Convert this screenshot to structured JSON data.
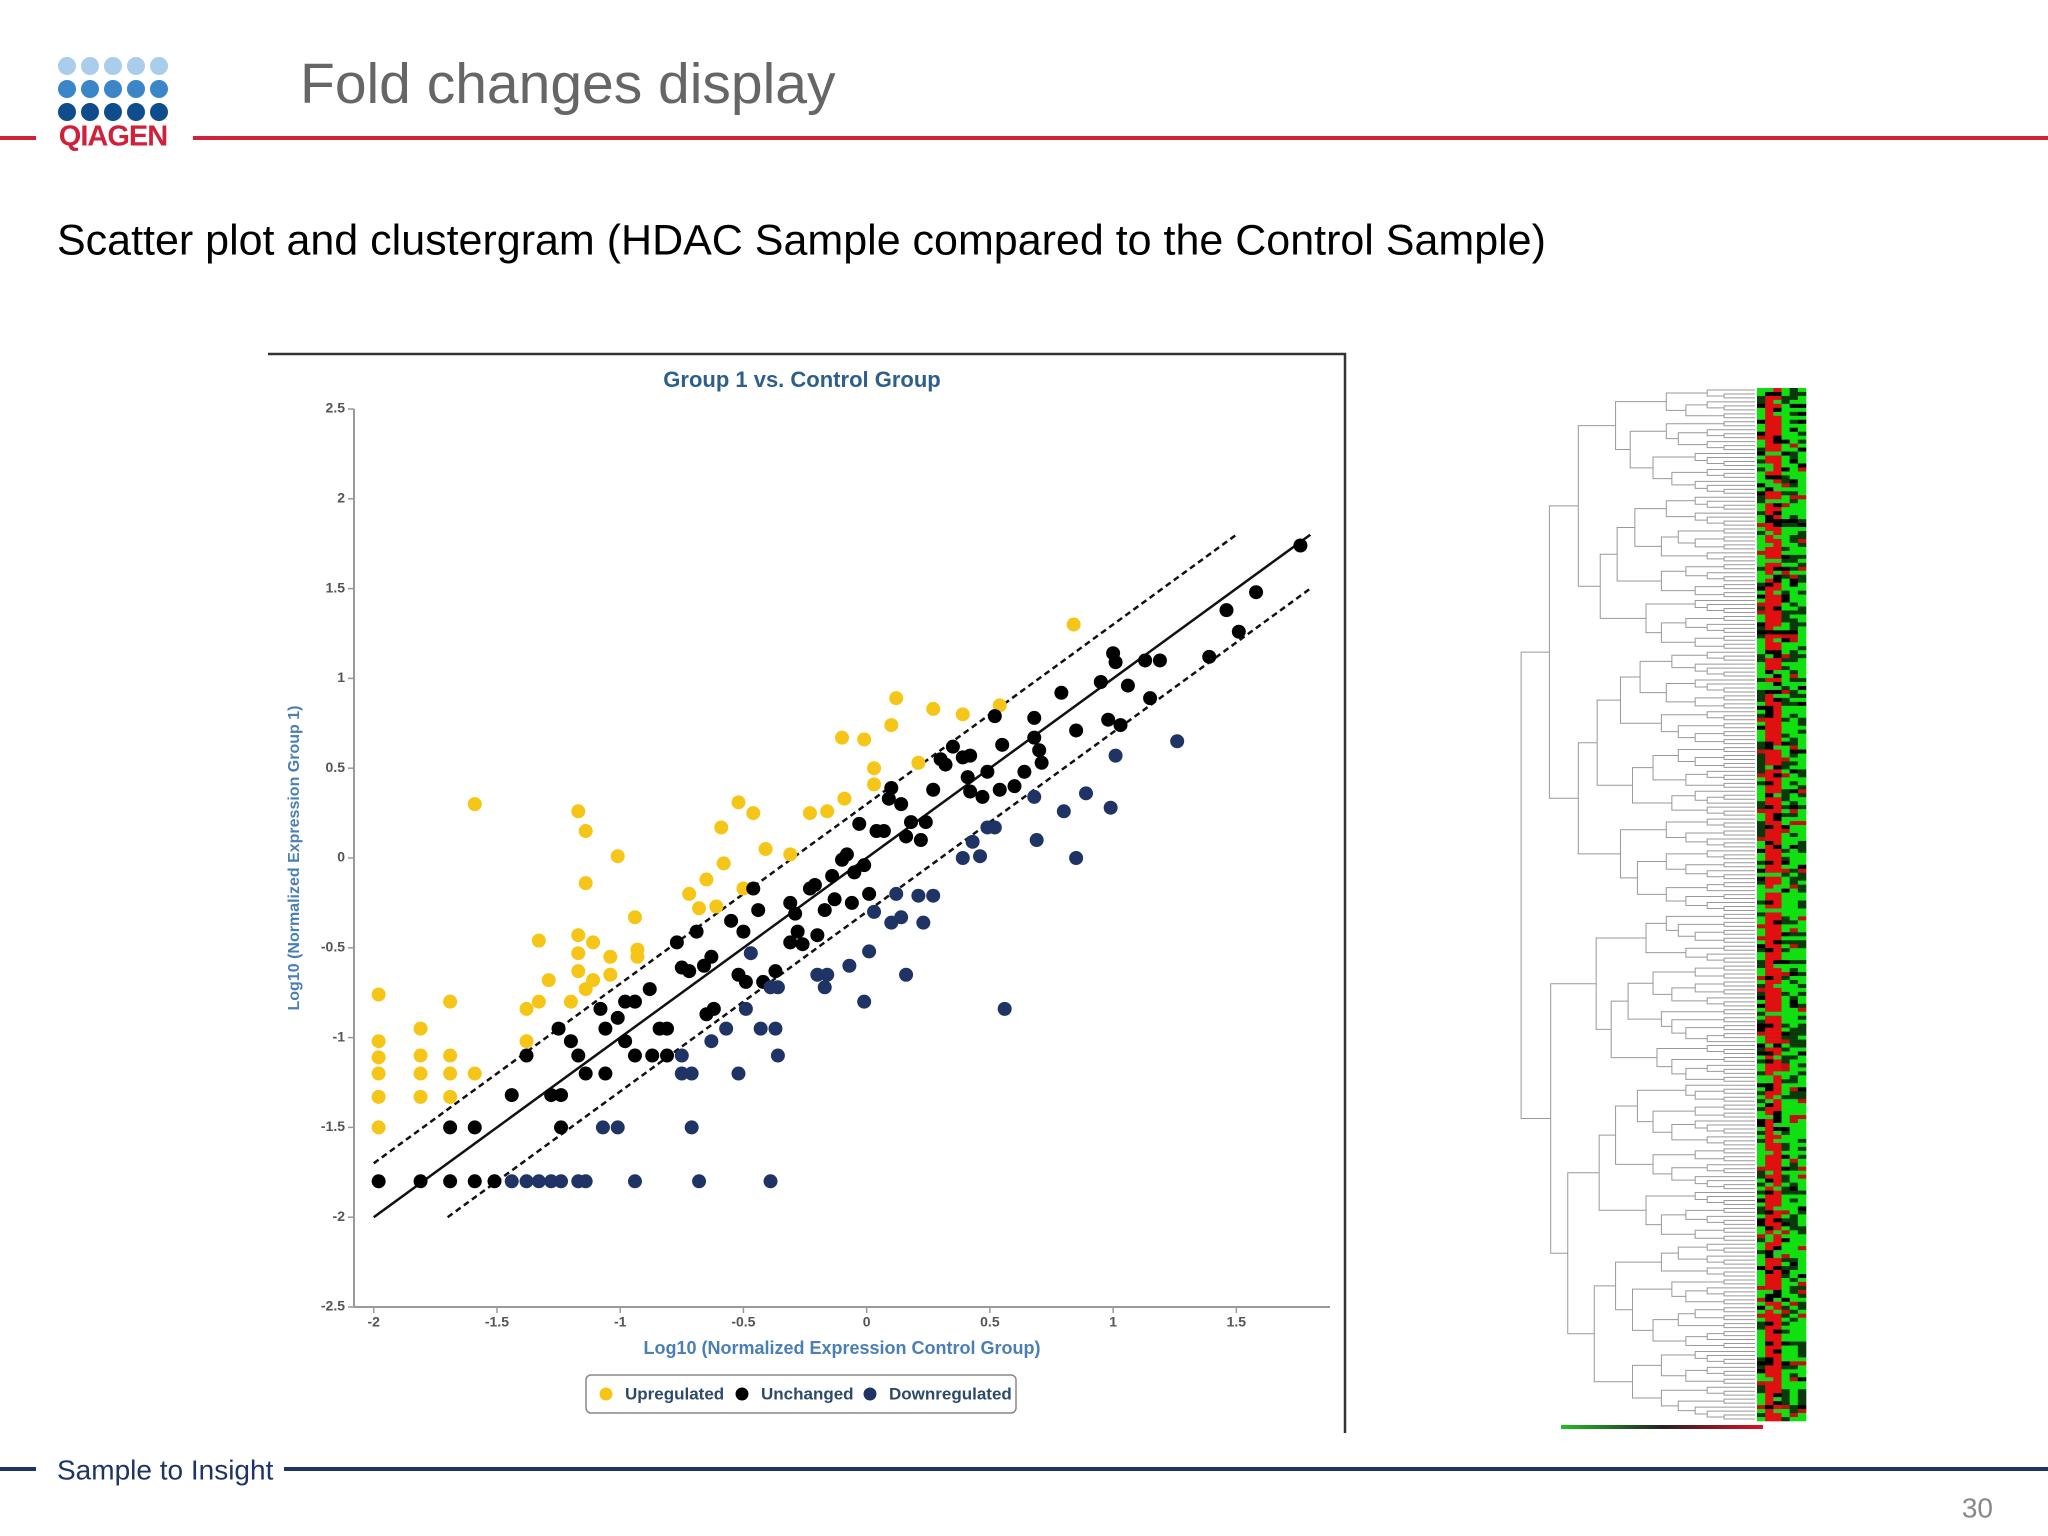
{
  "header": {
    "logo": "QIAGEN",
    "title": "Fold changes display"
  },
  "subtitle": "Scatter plot and clustergram (HDAC Sample compared to the Control Sample)",
  "footer": {
    "tagline": "Sample to Insight",
    "page": "30"
  },
  "chart_data": {
    "type": "scatter",
    "title": "Group 1 vs. Control Group",
    "x_label": "Log10 (Normalized Expression Control Group)",
    "y_label": "Log10 (Normalized Expression Group 1)",
    "xlim": [
      -2.08,
      1.88
    ],
    "ylim": [
      -2.5,
      2.5
    ],
    "xticks": [
      -2,
      -1.5,
      -1,
      -0.5,
      0,
      0.5,
      1,
      1.5
    ],
    "yticks": [
      2.5,
      2,
      1.5,
      1,
      0.5,
      0,
      -0.5,
      -1,
      -1.5,
      -2,
      -2.5
    ],
    "legend": "bottom",
    "lines": [
      {
        "style": "solid",
        "x": [
          -2,
          1.8
        ],
        "y": [
          -2,
          1.8
        ]
      },
      {
        "style": "dashed",
        "x": [
          -2,
          1.5
        ],
        "y": [
          -1.7,
          1.8
        ]
      },
      {
        "style": "dashed",
        "x": [
          -1.7,
          1.8
        ],
        "y": [
          -2,
          1.5
        ]
      }
    ],
    "series": [
      {
        "name": "Upregulated",
        "color": "#f5c518",
        "x": [
          -1.98,
          -1.98,
          -1.98,
          -1.98,
          -1.98,
          -1.98,
          -1.81,
          -1.81,
          -1.81,
          -1.81,
          -1.69,
          -1.69,
          -1.69,
          -1.69,
          -1.59,
          -1.59,
          -1.38,
          -1.38,
          -1.33,
          -1.33,
          -1.29,
          -1.2,
          -1.17,
          -1.17,
          -1.17,
          -1.17,
          -1.14,
          -1.14,
          -1.14,
          -1.11,
          -1.11,
          -1.04,
          -1.04,
          -1.01,
          -0.94,
          -0.93,
          -0.93,
          -0.72,
          -0.68,
          -0.65,
          -0.61,
          -0.59,
          -0.58,
          -0.52,
          -0.5,
          -0.46,
          -0.41,
          -0.31,
          -0.23,
          -0.16,
          -0.09,
          -0.1,
          -0.01,
          0.03,
          0.03,
          0.1,
          0.12,
          0.21,
          0.27,
          0.39,
          0.54,
          0.84
        ],
        "y": [
          -0.76,
          -1.02,
          -1.11,
          -1.2,
          -1.33,
          -1.5,
          -0.95,
          -1.1,
          -1.2,
          -1.33,
          -0.8,
          -1.1,
          -1.2,
          -1.33,
          0.3,
          -1.2,
          -0.84,
          -1.02,
          -0.46,
          -0.8,
          -0.68,
          -0.8,
          0.26,
          -0.43,
          -0.53,
          -0.63,
          0.15,
          -0.14,
          -0.73,
          -0.47,
          -0.68,
          -0.55,
          -0.65,
          0.01,
          -0.33,
          -0.51,
          -0.55,
          -0.2,
          -0.28,
          -0.12,
          -0.27,
          0.17,
          -0.03,
          0.31,
          -0.17,
          0.25,
          0.05,
          0.02,
          0.25,
          0.26,
          0.33,
          0.67,
          0.66,
          0.5,
          0.41,
          0.74,
          0.89,
          0.53,
          0.83,
          0.8,
          0.85,
          1.3
        ]
      },
      {
        "name": "Unchanged",
        "color": "#000000",
        "x": [
          -1.98,
          -1.81,
          -1.69,
          -1.59,
          -1.51,
          -1.69,
          -1.59,
          -1.44,
          -1.38,
          -1.28,
          -1.24,
          -1.24,
          -1.25,
          -1.2,
          -1.17,
          -1.14,
          -1.08,
          -1.06,
          -1.06,
          -1.01,
          -0.98,
          -0.94,
          -0.98,
          -0.94,
          -0.88,
          -0.84,
          -0.81,
          -0.87,
          -0.81,
          -0.77,
          -0.75,
          -0.72,
          -0.69,
          -0.66,
          -0.63,
          -0.65,
          -0.62,
          -0.55,
          -0.52,
          -0.5,
          -0.49,
          -0.46,
          -0.44,
          -0.42,
          -0.37,
          -0.31,
          -0.31,
          -0.29,
          -0.28,
          -0.26,
          -0.23,
          -0.21,
          -0.2,
          -0.17,
          -0.14,
          -0.13,
          -0.1,
          -0.08,
          -0.05,
          -0.06,
          -0.03,
          -0.01,
          0.01,
          0.04,
          0.07,
          0.09,
          0.1,
          0.14,
          0.16,
          0.18,
          0.22,
          0.24,
          0.27,
          0.3,
          0.32,
          0.35,
          0.39,
          0.41,
          0.42,
          0.42,
          0.47,
          0.49,
          0.52,
          0.54,
          0.55,
          0.6,
          0.64,
          0.68,
          0.68,
          0.7,
          0.71,
          0.79,
          0.85,
          0.95,
          0.98,
          1.0,
          1.01,
          1.03,
          1.06,
          1.13,
          1.15,
          1.19,
          1.39,
          1.46,
          1.51,
          1.58,
          1.76
        ],
        "y": [
          -1.8,
          -1.8,
          -1.8,
          -1.8,
          -1.8,
          -1.5,
          -1.5,
          -1.32,
          -1.1,
          -1.32,
          -1.32,
          -1.5,
          -0.95,
          -1.02,
          -1.1,
          -1.2,
          -0.84,
          -1.2,
          -0.95,
          -0.89,
          -0.8,
          -0.8,
          -1.02,
          -1.1,
          -0.73,
          -0.95,
          -0.95,
          -1.1,
          -1.1,
          -0.47,
          -0.61,
          -0.63,
          -0.41,
          -0.6,
          -0.55,
          -0.87,
          -0.84,
          -0.35,
          -0.65,
          -0.41,
          -0.69,
          -0.17,
          -0.29,
          -0.69,
          -0.63,
          -0.25,
          -0.47,
          -0.31,
          -0.41,
          -0.48,
          -0.17,
          -0.15,
          -0.43,
          -0.29,
          -0.1,
          -0.23,
          -0.01,
          0.02,
          -0.08,
          -0.25,
          0.19,
          -0.04,
          -0.2,
          0.15,
          0.15,
          0.33,
          0.39,
          0.3,
          0.12,
          0.2,
          0.1,
          0.2,
          0.38,
          0.55,
          0.52,
          0.62,
          0.56,
          0.45,
          0.57,
          0.37,
          0.34,
          0.48,
          0.79,
          0.38,
          0.63,
          0.4,
          0.48,
          0.78,
          0.67,
          0.6,
          0.53,
          0.92,
          0.71,
          0.98,
          0.77,
          1.14,
          1.09,
          0.74,
          0.96,
          1.1,
          0.89,
          1.1,
          1.12,
          1.38,
          1.26,
          1.48,
          1.74
        ]
      },
      {
        "name": "Downregulated",
        "color": "#1f3464",
        "x": [
          -1.44,
          -1.38,
          -1.33,
          -1.28,
          -1.24,
          -1.17,
          -1.14,
          -0.94,
          -0.68,
          -0.39,
          -1.07,
          -1.01,
          -0.71,
          -0.75,
          -0.75,
          -0.71,
          -0.63,
          -0.57,
          -0.52,
          -0.49,
          -0.43,
          -0.37,
          -0.36,
          -0.39,
          -0.36,
          -0.47,
          -0.2,
          -0.17,
          -0.16,
          -0.07,
          -0.01,
          0.01,
          0.03,
          0.1,
          0.12,
          0.14,
          0.16,
          0.21,
          0.23,
          0.27,
          0.39,
          0.43,
          0.46,
          0.49,
          0.52,
          0.56,
          0.68,
          0.69,
          0.8,
          0.85,
          0.89,
          0.99,
          1.01,
          1.26
        ],
        "y": [
          -1.8,
          -1.8,
          -1.8,
          -1.8,
          -1.8,
          -1.8,
          -1.8,
          -1.8,
          -1.8,
          -1.8,
          -1.5,
          -1.5,
          -1.5,
          -1.1,
          -1.2,
          -1.2,
          -1.02,
          -0.95,
          -1.2,
          -0.84,
          -0.95,
          -0.95,
          -1.1,
          -0.72,
          -0.72,
          -0.53,
          -0.65,
          -0.72,
          -0.65,
          -0.6,
          -0.8,
          -0.52,
          -0.3,
          -0.36,
          -0.2,
          -0.33,
          -0.65,
          -0.21,
          -0.36,
          -0.21,
          0.0,
          0.09,
          0.01,
          0.17,
          0.17,
          -0.84,
          0.34,
          0.1,
          0.26,
          0.0,
          0.36,
          0.28,
          0.57,
          0.65
        ]
      }
    ]
  }
}
